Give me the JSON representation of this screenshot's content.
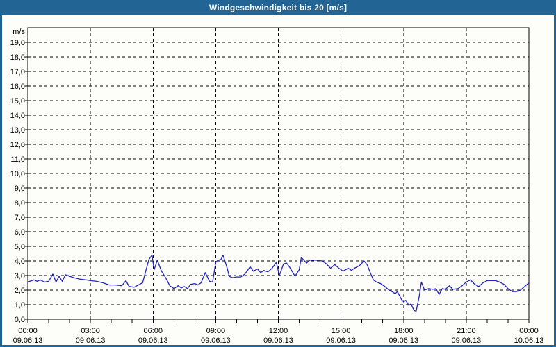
{
  "window": {
    "title": "Windgeschwindigkeit bis 20 [m/s]",
    "colors": {
      "titlebar_bg": "#226493",
      "window_border": "#226493",
      "content_bg": "#fdfdfa",
      "line": "#2222bd",
      "grid": "#000000",
      "text": "#000000"
    }
  },
  "chart_data": {
    "type": "line",
    "title": "Windgeschwindigkeit bis 20 [m/s]",
    "unit_label": "m/s",
    "ylim": [
      0,
      20
    ],
    "y_tick_step": 1.0,
    "grid": "dashed",
    "legend": "none",
    "y_tick_labels": [
      "19,0",
      "18,0",
      "17,0",
      "16,0",
      "15,0",
      "14,0",
      "13,0",
      "12,0",
      "11,0",
      "10,0",
      "9,0",
      "8,0",
      "7,0",
      "6,0",
      "5,0",
      "4,0",
      "3,0",
      "2,0",
      "1,0",
      "0,0"
    ],
    "x_ticks": [
      {
        "hour": 0,
        "time": "00:00",
        "date": "09.06.13"
      },
      {
        "hour": 3,
        "time": "03:00",
        "date": "09.06.13"
      },
      {
        "hour": 6,
        "time": "06:00",
        "date": "09.06.13"
      },
      {
        "hour": 9,
        "time": "09:00",
        "date": "09.06.13"
      },
      {
        "hour": 12,
        "time": "12:00",
        "date": "09.06.13"
      },
      {
        "hour": 15,
        "time": "15:00",
        "date": "09.06.13"
      },
      {
        "hour": 18,
        "time": "18:00",
        "date": "09.06.13"
      },
      {
        "hour": 21,
        "time": "21:00",
        "date": "09.06.13"
      },
      {
        "hour": 24,
        "time": "00:00",
        "date": "10.06.13"
      }
    ],
    "minor_tick_interval_hours": 1,
    "series": [
      {
        "name": "Windgeschwindigkeit",
        "color": "#2222bd",
        "x_hours": [
          0,
          0.3,
          0.45,
          0.6,
          0.8,
          1.0,
          1.2,
          1.35,
          1.5,
          1.65,
          1.8,
          2.0,
          2.2,
          2.5,
          2.8,
          3.0,
          3.3,
          3.6,
          3.9,
          4.2,
          4.5,
          4.7,
          4.85,
          5.1,
          5.3,
          5.5,
          5.65,
          5.8,
          5.95,
          6.05,
          6.2,
          6.4,
          6.6,
          6.8,
          7.0,
          7.2,
          7.35,
          7.5,
          7.65,
          7.8,
          8.0,
          8.15,
          8.3,
          8.5,
          8.7,
          8.85,
          9.0,
          9.1,
          9.25,
          9.35,
          9.55,
          9.65,
          9.8,
          10.0,
          10.2,
          10.4,
          10.65,
          10.8,
          11.0,
          11.15,
          11.3,
          11.5,
          11.7,
          11.9,
          12.05,
          12.25,
          12.4,
          12.55,
          12.8,
          13.0,
          13.1,
          13.35,
          13.5,
          13.8,
          14.1,
          14.3,
          14.5,
          14.7,
          14.9,
          15.1,
          15.35,
          15.5,
          15.65,
          15.9,
          16.1,
          16.25,
          16.4,
          16.55,
          16.7,
          16.9,
          17.1,
          17.3,
          17.5,
          17.6,
          17.7,
          17.9,
          18.0,
          18.1,
          18.25,
          18.35,
          18.5,
          18.6,
          18.75,
          18.85,
          19.0,
          19.2,
          19.4,
          19.55,
          19.7,
          19.85,
          20.0,
          20.2,
          20.35,
          20.6,
          20.8,
          21.0,
          21.2,
          21.4,
          21.6,
          21.8,
          22.0,
          22.2,
          22.4,
          22.6,
          22.8,
          23.0,
          23.2,
          23.4,
          23.6,
          23.8,
          24.0
        ],
        "values_ms": [
          2.55,
          2.7,
          2.6,
          2.7,
          2.55,
          2.6,
          3.1,
          2.55,
          2.95,
          2.6,
          3.05,
          2.95,
          2.85,
          2.75,
          2.7,
          2.65,
          2.6,
          2.5,
          2.35,
          2.35,
          2.3,
          2.65,
          2.25,
          2.2,
          2.35,
          2.5,
          3.3,
          4.1,
          4.4,
          3.4,
          4.05,
          3.3,
          2.85,
          2.3,
          2.1,
          2.3,
          2.15,
          2.25,
          2.1,
          2.4,
          2.45,
          2.35,
          2.5,
          3.2,
          2.6,
          2.55,
          3.9,
          4.05,
          4.1,
          4.4,
          3.5,
          2.95,
          2.85,
          2.9,
          2.9,
          3.1,
          3.6,
          3.3,
          3.45,
          3.2,
          3.35,
          3.25,
          3.5,
          3.9,
          3.0,
          3.8,
          3.85,
          3.55,
          2.95,
          3.4,
          4.25,
          3.85,
          4.05,
          4.05,
          4.0,
          3.8,
          3.5,
          3.75,
          3.5,
          3.3,
          3.5,
          3.35,
          3.5,
          3.7,
          4.0,
          3.75,
          3.2,
          2.7,
          2.55,
          2.45,
          2.25,
          2.0,
          1.85,
          1.75,
          1.9,
          1.35,
          1.2,
          1.3,
          0.95,
          1.05,
          0.6,
          0.55,
          1.6,
          2.55,
          2.0,
          2.1,
          2.05,
          2.1,
          1.7,
          2.1,
          2.05,
          2.3,
          2.05,
          2.1,
          2.3,
          2.55,
          2.7,
          2.4,
          2.25,
          2.5,
          2.65,
          2.65,
          2.65,
          2.55,
          2.4,
          2.1,
          1.9,
          1.9,
          2.0,
          2.25,
          2.5
        ]
      }
    ]
  }
}
